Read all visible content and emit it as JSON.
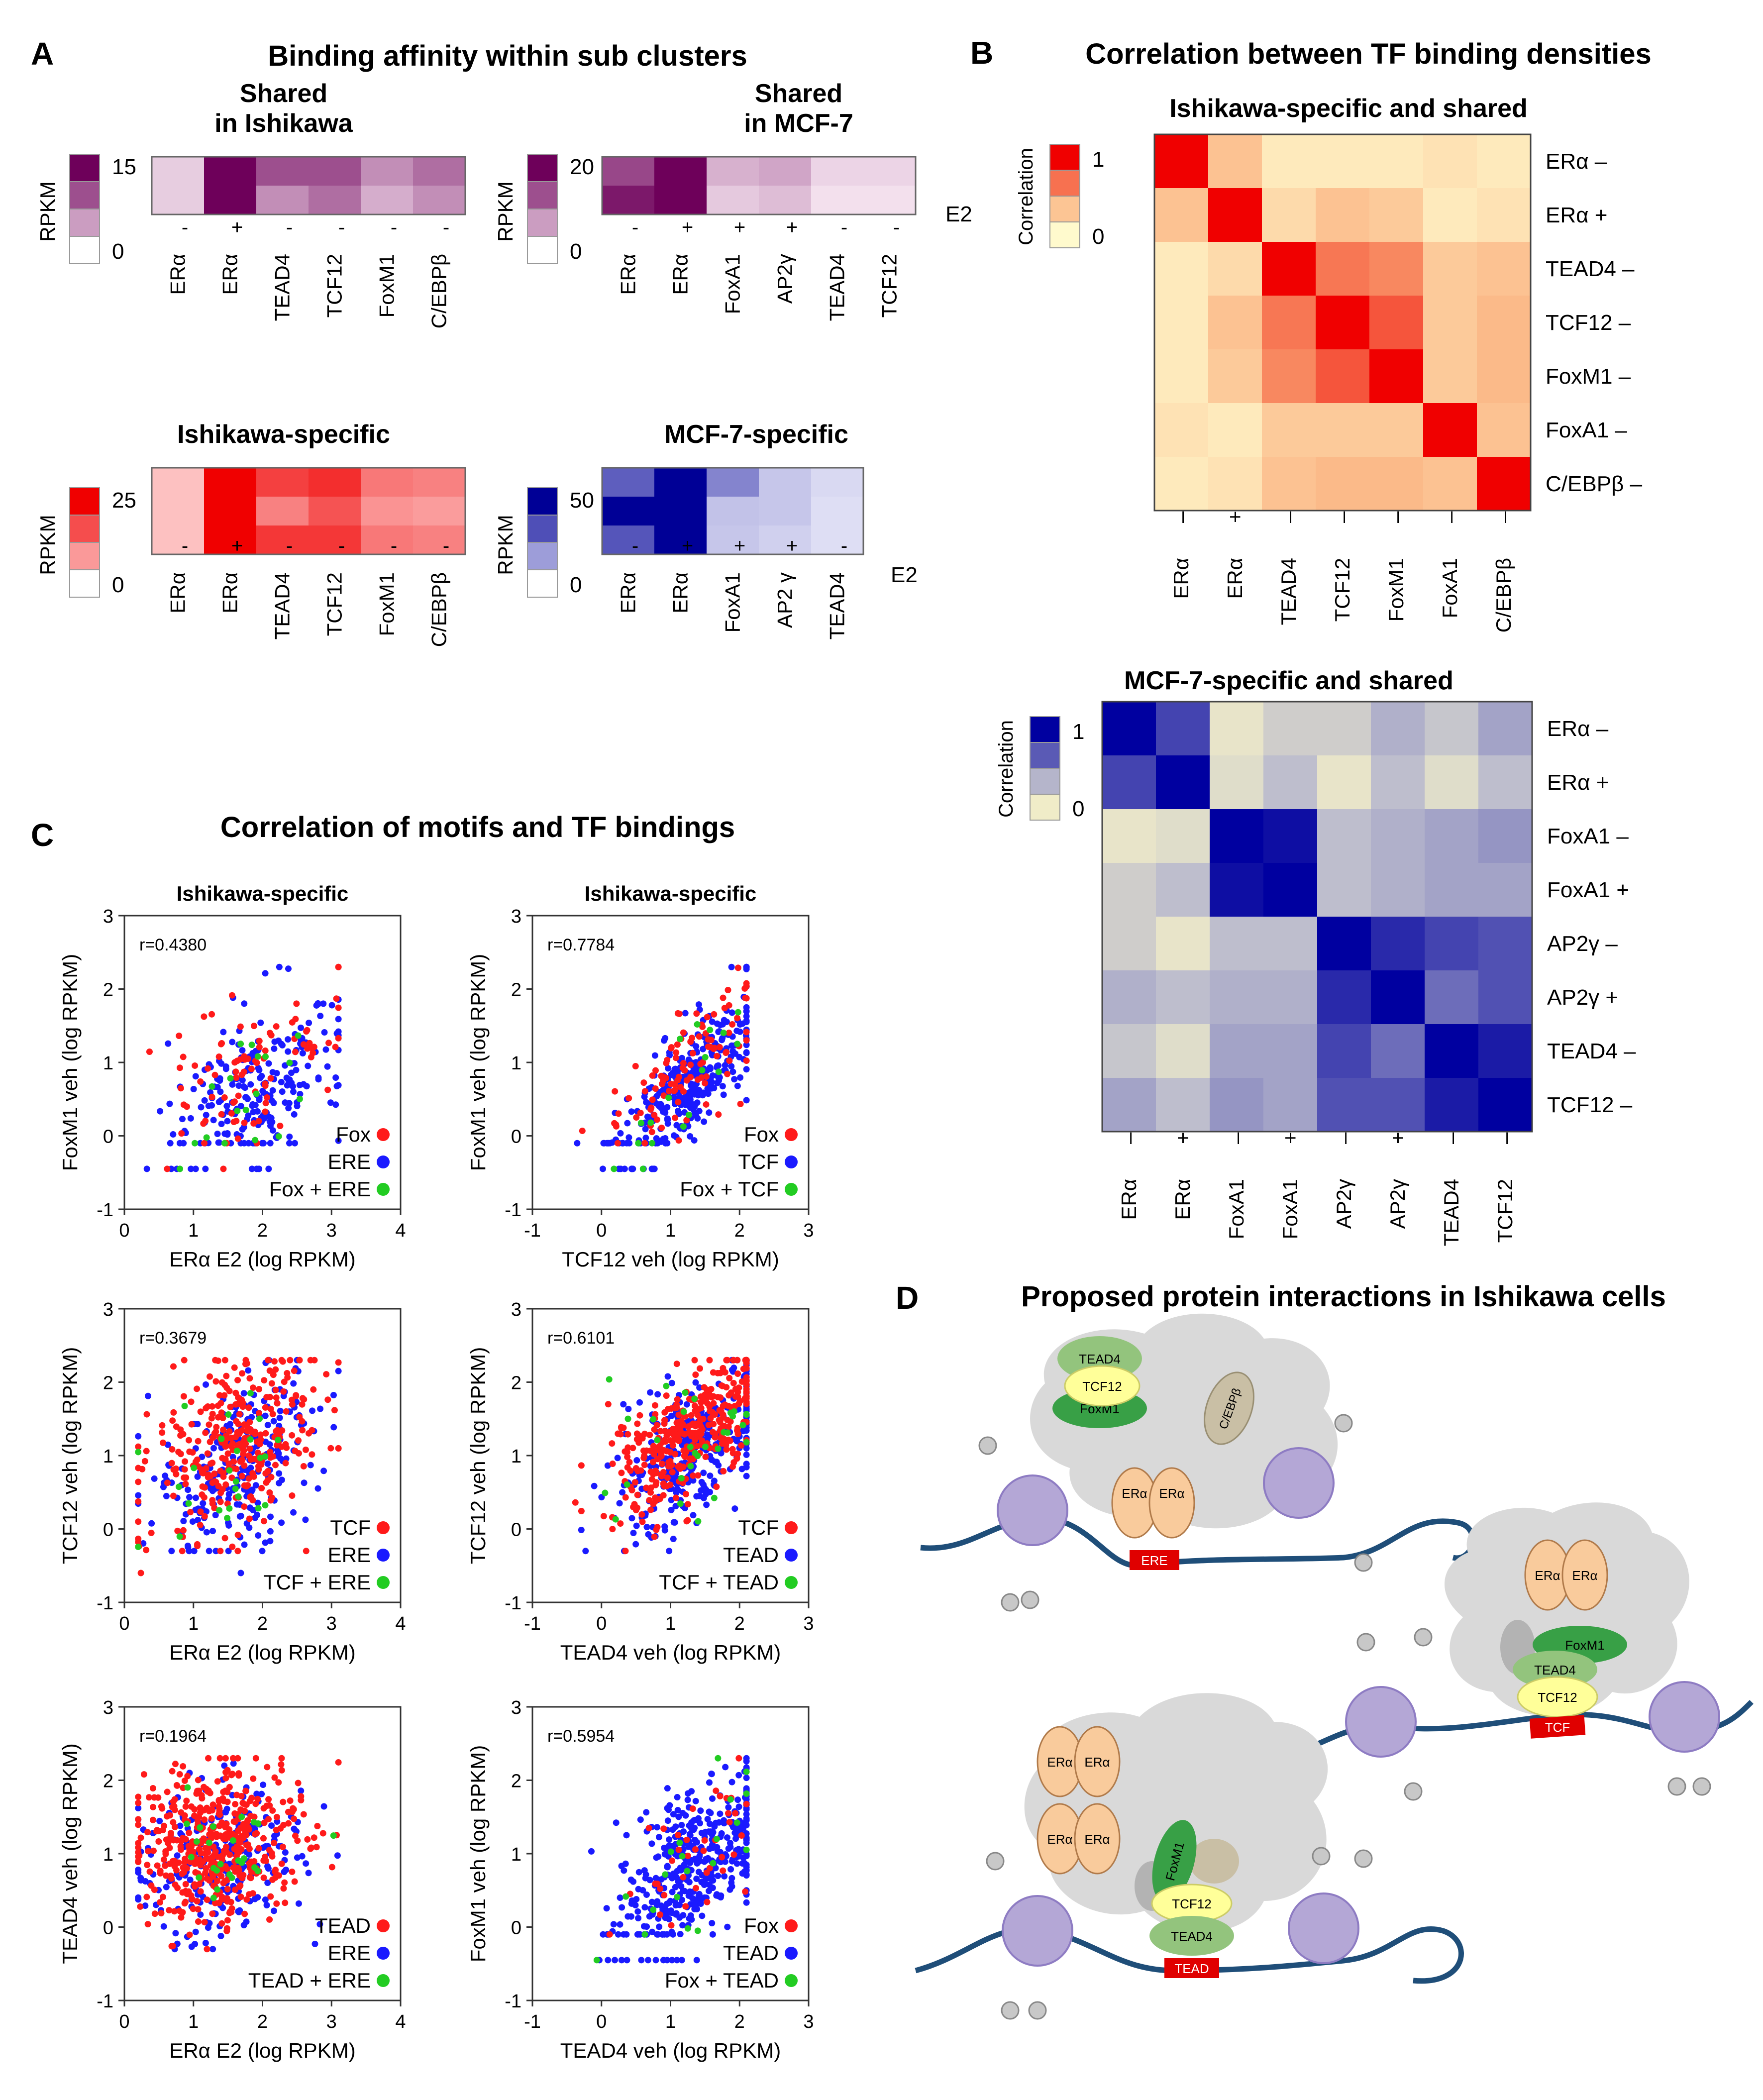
{
  "panels": {
    "A": {
      "letter": "A",
      "title": "Binding affinity within sub clusters",
      "subplots": [
        {
          "key": "shared_ishikawa",
          "title_lines": [
            "Shared",
            "in Ishikawa"
          ],
          "colormap": "purple",
          "scale_label": "RPKM",
          "scale_max": "15",
          "scale_min": "0",
          "columns": [
            "ERα",
            "ERα",
            "TEAD4",
            "TCF12",
            "FoxM1",
            "C/EBPβ"
          ],
          "signs": [
            "-",
            "+",
            "-",
            "-",
            "-",
            "-"
          ],
          "e2_label": "",
          "values": [
            [
              2,
              15,
              10,
              10,
              6,
              8
            ],
            [
              2,
              15,
              6,
              8,
              4,
              6
            ]
          ]
        },
        {
          "key": "shared_mcf7",
          "title_lines": [
            "Shared",
            "in MCF-7"
          ],
          "colormap": "purple",
          "scale_label": "RPKM",
          "scale_max": "20",
          "scale_min": "0",
          "columns": [
            "ERα",
            "ERα",
            "FoxA1",
            "AP2γ",
            "TEAD4",
            "TCF12"
          ],
          "signs": [
            "-",
            "+",
            "+",
            "+",
            "-",
            "-"
          ],
          "e2_label": "E2",
          "values": [
            [
              14,
              20,
              5,
              6,
              2,
              2
            ],
            [
              18,
              20,
              3,
              4,
              1,
              1
            ]
          ]
        },
        {
          "key": "ishikawa_specific",
          "title_lines": [
            "Ishikawa-specific"
          ],
          "colormap": "red",
          "scale_label": "RPKM",
          "scale_max": "25",
          "scale_min": "0",
          "columns": [
            "ERα",
            "ERα",
            "TEAD4",
            "TCF12",
            "FoxM1",
            "C/EBPβ"
          ],
          "signs": [
            "-",
            "+",
            "-",
            "-",
            "-",
            "-"
          ],
          "e2_label": "",
          "values": [
            [
              4,
              25,
              18,
              20,
              12,
              11
            ],
            [
              4,
              25,
              11,
              16,
              9,
              8
            ],
            [
              4,
              25,
              19,
              19,
              12,
              11
            ]
          ]
        },
        {
          "key": "mcf7_specific",
          "title_lines": [
            "MCF-7-specific"
          ],
          "colormap": "blue",
          "scale_label": "RPKM",
          "scale_max": "50",
          "scale_min": "0",
          "columns": [
            "ERα",
            "ERα",
            "FoxA1",
            "AP2 γ",
            "TEAD4"
          ],
          "signs": [
            "-",
            "+",
            "+",
            "+",
            "-"
          ],
          "e2_label": "E2",
          "values": [
            [
              30,
              60,
              22,
              8,
              4
            ],
            [
              52,
              60,
              9,
              8,
              3
            ],
            [
              32,
              60,
              8,
              6,
              3
            ]
          ]
        }
      ]
    },
    "B": {
      "letter": "B",
      "title": "Correlation between TF binding densities",
      "heatmaps": [
        {
          "key": "ishikawa_shared",
          "title": "Ishikawa-specific and shared",
          "colormap": "red",
          "scale_label": "Correlation",
          "scale_max": "1",
          "scale_min": "0",
          "rows": [
            "ERα –",
            "ERα +",
            "TEAD4 –",
            "TCF12 –",
            "FoxM1 –",
            "FoxA1  –",
            "C/EBPβ –"
          ],
          "columns": [
            "ERα",
            "ERα",
            "TEAD4",
            "TCF12",
            "FoxM1",
            "FoxA1",
            "C/EBPβ"
          ],
          "signs": [
            "–",
            "+",
            "–",
            "–",
            "–",
            "–",
            "–"
          ],
          "matrix": [
            [
              1,
              0.35,
              0.1,
              0.1,
              0.1,
              0.15,
              0.1
            ],
            [
              0.35,
              1,
              0.2,
              0.35,
              0.3,
              0.1,
              0.15
            ],
            [
              0.1,
              0.2,
              1,
              0.65,
              0.6,
              0.3,
              0.35
            ],
            [
              0.1,
              0.35,
              0.65,
              1,
              0.75,
              0.3,
              0.4
            ],
            [
              0.1,
              0.3,
              0.6,
              0.75,
              1,
              0.3,
              0.4
            ],
            [
              0.15,
              0.1,
              0.3,
              0.3,
              0.3,
              1,
              0.35
            ],
            [
              0.1,
              0.15,
              0.35,
              0.4,
              0.4,
              0.35,
              1
            ]
          ]
        },
        {
          "key": "mcf7_shared",
          "title": "MCF-7-specific and shared",
          "colormap": "blue",
          "scale_label": "Correlation",
          "scale_max": "1",
          "scale_min": "0",
          "rows": [
            "ERα –",
            "ERα +",
            "FoxA1  –",
            "FoxA1  +",
            "AP2γ –",
            "AP2γ +",
            "TEAD4 –",
            "TCF12 –"
          ],
          "columns": [
            "ERα",
            "ERα",
            "FoxA1",
            "FoxA1",
            "AP2γ",
            "AP2γ",
            "TEAD4",
            "TCF12"
          ],
          "signs": [
            "–",
            "+",
            "–",
            "+",
            "–",
            "+",
            "–",
            "–"
          ],
          "matrix": [
            [
              1,
              0.75,
              0.05,
              0.2,
              0.2,
              0.35,
              0.25,
              0.4
            ],
            [
              0.75,
              1,
              0.1,
              0.3,
              0.05,
              0.3,
              0.1,
              0.3
            ],
            [
              0.05,
              0.1,
              1,
              0.95,
              0.3,
              0.35,
              0.4,
              0.45
            ],
            [
              0.2,
              0.3,
              0.95,
              1,
              0.3,
              0.35,
              0.4,
              0.4
            ],
            [
              0.2,
              0.05,
              0.3,
              0.3,
              1,
              0.85,
              0.75,
              0.7
            ],
            [
              0.35,
              0.3,
              0.35,
              0.35,
              0.85,
              1,
              0.6,
              0.7
            ],
            [
              0.25,
              0.1,
              0.4,
              0.4,
              0.75,
              0.6,
              1,
              0.9
            ],
            [
              0.4,
              0.3,
              0.45,
              0.4,
              0.7,
              0.7,
              0.9,
              1
            ]
          ]
        }
      ]
    },
    "C": {
      "letter": "C",
      "title": "Correlation of motifs and TF bindings",
      "column_titles": [
        "Ishikawa-specific",
        "Ishikawa-specific"
      ],
      "y_tick_labels": [
        "3",
        "2",
        "1",
        "0",
        "-1"
      ],
      "x_ticks_left": [
        "0",
        "1",
        "2",
        "3",
        "4"
      ],
      "x_ticks_right": [
        "-1",
        "0",
        "1",
        "2",
        "3"
      ]
    },
    "D": {
      "letter": "D",
      "title": "Proposed protein interactions in Ishikawa cells",
      "labels": {
        "tead4": "TEAD4",
        "tcf12": "TCF12",
        "foxm1": "FoxM1",
        "cebpb": "C/EBPβ",
        "era": "ERα",
        "ere": "ERE",
        "tcf": "TCF",
        "tead": "TEAD"
      }
    }
  },
  "chart_data": [
    {
      "type": "scatter",
      "title": "Ishikawa-specific",
      "r_label": "r=0.4380",
      "r": 0.438,
      "xlabel": "ERα E2 (log RPKM)",
      "ylabel": "FoxM1 veh (log RPKM)",
      "xlim": [
        0,
        4
      ],
      "ylim": [
        -1,
        3
      ],
      "legend": [
        "Fox",
        "ERE",
        "Fox + ERE"
      ],
      "colors": [
        "#ff1a1a",
        "#1a1aff",
        "#22cc22"
      ],
      "counts": [
        90,
        230,
        18
      ],
      "center": [
        1.9,
        0.7
      ],
      "spread": [
        0.6,
        0.6
      ],
      "floor": -0.1,
      "floor2": -0.45
    },
    {
      "type": "scatter",
      "title": "Ishikawa-specific",
      "r_label": "r=0.7784",
      "r": 0.7784,
      "xlabel": "TCF12 veh (log RPKM)",
      "ylabel": "FoxM1 veh (log RPKM)",
      "xlim": [
        -1,
        3
      ],
      "ylim": [
        -1,
        3
      ],
      "legend": [
        "Fox",
        "TCF",
        "Fox + TCF"
      ],
      "colors": [
        "#ff1a1a",
        "#1a1aff",
        "#22cc22"
      ],
      "counts": [
        110,
        330,
        18
      ],
      "center": [
        1.25,
        0.75
      ],
      "spread": [
        0.55,
        0.6
      ],
      "floor": -0.1,
      "floor2": -0.45
    },
    {
      "type": "scatter",
      "title": "",
      "r_label": "r=0.3679",
      "r": 0.3679,
      "xlabel": "ERα E2 (log RPKM)",
      "ylabel": "TCF12 veh (log RPKM)",
      "xlim": [
        0,
        4
      ],
      "ylim": [
        -1,
        3
      ],
      "legend": [
        "TCF",
        "ERE",
        "TCF + ERE"
      ],
      "colors": [
        "#ff1a1a",
        "#1a1aff",
        "#22cc22"
      ],
      "counts": [
        320,
        260,
        25
      ],
      "center": [
        1.6,
        1.0
      ],
      "spread": [
        0.6,
        0.6
      ],
      "floor": -0.3,
      "floor2": -0.7
    },
    {
      "type": "scatter",
      "title": "",
      "r_label": "r=0.6101",
      "r": 0.6101,
      "xlabel": "TEAD4 veh (log RPKM)",
      "ylabel": "TCF12 veh (log RPKM)",
      "xlim": [
        -1,
        3
      ],
      "ylim": [
        -1,
        3
      ],
      "legend": [
        "TCF",
        "TEAD",
        "TCF + TEAD"
      ],
      "colors": [
        "#ff1a1a",
        "#1a1aff",
        "#22cc22"
      ],
      "counts": [
        360,
        320,
        30
      ],
      "center": [
        1.3,
        1.15
      ],
      "spread": [
        0.6,
        0.55
      ],
      "floor": -0.3,
      "floor2": -0.7
    },
    {
      "type": "scatter",
      "title": "",
      "r_label": "r=0.1964",
      "r": 0.1964,
      "xlabel": "ERα E2 (log RPKM)",
      "ylabel": "TEAD4 veh (log RPKM)",
      "xlim": [
        0,
        4
      ],
      "ylim": [
        -1,
        3
      ],
      "legend": [
        "TEAD",
        "ERE",
        "TEAD + ERE"
      ],
      "colors": [
        "#ff1a1a",
        "#1a1aff",
        "#22cc22"
      ],
      "counts": [
        460,
        240,
        25
      ],
      "center": [
        1.4,
        1.0
      ],
      "spread": [
        0.6,
        0.55
      ],
      "floor": -0.3,
      "floor2": -0.7
    },
    {
      "type": "scatter",
      "title": "",
      "r_label": "r=0.5954",
      "r": 0.5954,
      "xlabel": "TEAD4 veh (log RPKM)",
      "ylabel": "FoxM1 veh (log RPKM)",
      "xlim": [
        -1,
        3
      ],
      "ylim": [
        -1,
        3
      ],
      "legend": [
        "Fox",
        "TEAD",
        "Fox + TEAD"
      ],
      "colors": [
        "#ff1a1a",
        "#1a1aff",
        "#22cc22"
      ],
      "counts": [
        40,
        430,
        20
      ],
      "center": [
        1.35,
        0.9
      ],
      "spread": [
        0.55,
        0.6
      ],
      "floor": -0.1,
      "floor2": -0.45
    }
  ]
}
